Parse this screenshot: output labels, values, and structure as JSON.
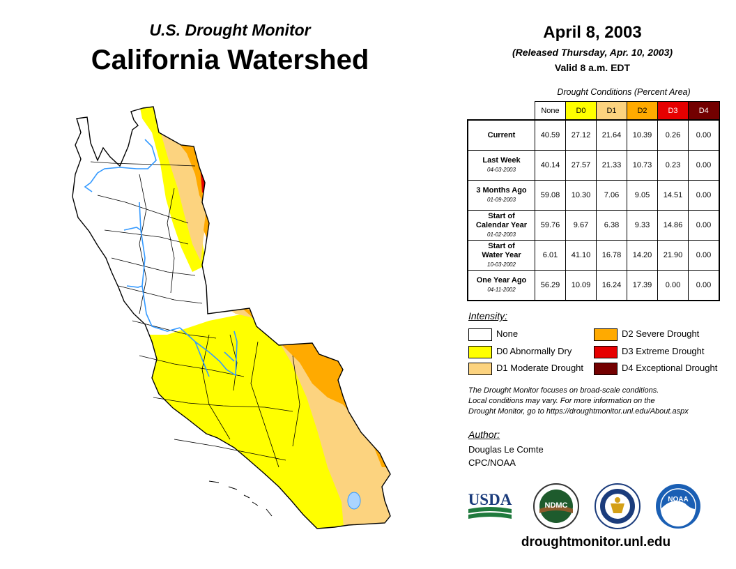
{
  "header": {
    "subtitle": "U.S. Drought Monitor",
    "title": "California Watershed"
  },
  "date": {
    "main": "April 8, 2003",
    "released": "(Released Thursday, Apr. 10, 2003)",
    "valid": "Valid 8 a.m. EDT"
  },
  "conditions_table": {
    "caption": "Drought Conditions (Percent Area)",
    "columns": [
      {
        "label": "None",
        "color": "#ffffff",
        "text_color": "#000000"
      },
      {
        "label": "D0",
        "color": "#ffff00",
        "text_color": "#000000"
      },
      {
        "label": "D1",
        "color": "#fcd37f",
        "text_color": "#000000"
      },
      {
        "label": "D2",
        "color": "#ffaa00",
        "text_color": "#000000"
      },
      {
        "label": "D3",
        "color": "#e60000",
        "text_color": "#ffffff"
      },
      {
        "label": "D4",
        "color": "#730000",
        "text_color": "#ffffff"
      }
    ],
    "rows": [
      {
        "label": "Current",
        "date": "",
        "values": [
          "40.59",
          "27.12",
          "21.64",
          "10.39",
          "0.26",
          "0.00"
        ]
      },
      {
        "label": "Last Week",
        "date": "04-03-2003",
        "values": [
          "40.14",
          "27.57",
          "21.33",
          "10.73",
          "0.23",
          "0.00"
        ]
      },
      {
        "label": "3 Months Ago",
        "date": "01-09-2003",
        "values": [
          "59.08",
          "10.30",
          "7.06",
          "9.05",
          "14.51",
          "0.00"
        ]
      },
      {
        "label": "Start of\nCalendar Year",
        "date": "01-02-2003",
        "values": [
          "59.76",
          "9.67",
          "6.38",
          "9.33",
          "14.86",
          "0.00"
        ]
      },
      {
        "label": "Start of\nWater Year",
        "date": "10-03-2002",
        "values": [
          "6.01",
          "41.10",
          "16.78",
          "14.20",
          "21.90",
          "0.00"
        ]
      },
      {
        "label": "One Year Ago",
        "date": "04-11-2002",
        "values": [
          "56.29",
          "10.09",
          "16.24",
          "17.39",
          "0.00",
          "0.00"
        ]
      }
    ]
  },
  "legend": {
    "title": "Intensity:",
    "items": [
      {
        "label": "None",
        "color": "#ffffff"
      },
      {
        "label": "D0 Abnormally Dry",
        "color": "#ffff00"
      },
      {
        "label": "D1 Moderate Drought",
        "color": "#fcd37f"
      },
      {
        "label": "D2 Severe Drought",
        "color": "#ffaa00"
      },
      {
        "label": "D3 Extreme Drought",
        "color": "#e60000"
      },
      {
        "label": "D4 Exceptional Drought",
        "color": "#730000"
      }
    ]
  },
  "note": {
    "line1": "The Drought Monitor focuses on broad-scale conditions.",
    "line2": "Local conditions may vary. For more information on the",
    "line3": "Drought Monitor, go to https://droughtmonitor.unl.edu/About.aspx"
  },
  "author": {
    "title": "Author:",
    "name": "Douglas Le Comte",
    "org": "CPC/NOAA"
  },
  "logos": {
    "usda": "USDA",
    "ndmc": "NDMC",
    "noaa": "NOAA"
  },
  "site": "droughtmonitor.unl.edu",
  "colors": {
    "none": "#ffffff",
    "d0": "#ffff00",
    "d1": "#fcd37f",
    "d2": "#ffaa00",
    "d3": "#e60000",
    "d4": "#730000",
    "river": "#3399ff"
  }
}
